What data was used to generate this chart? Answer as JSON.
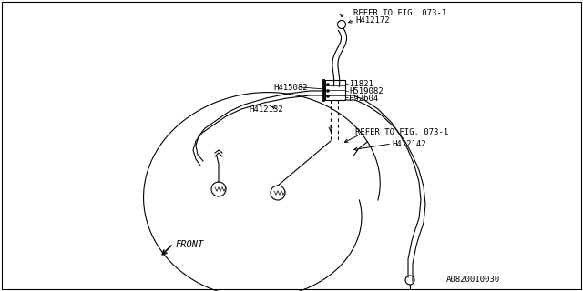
{
  "background_color": "#ffffff",
  "border_color": "#000000",
  "line_color": "#000000",
  "labels": {
    "refer_top": "REFER TO FIG. 073-1",
    "H412172": "H412172",
    "H415082": "H415082",
    "I1821": "I1821",
    "H519082": "H519082",
    "F92604": "F92604",
    "H412132": "H412132",
    "refer_right": "REFER TO FIG. 073-1",
    "H412142": "H412142",
    "front": "FRONT",
    "diagram_num": "A0820010030"
  },
  "font_size": 6.5
}
